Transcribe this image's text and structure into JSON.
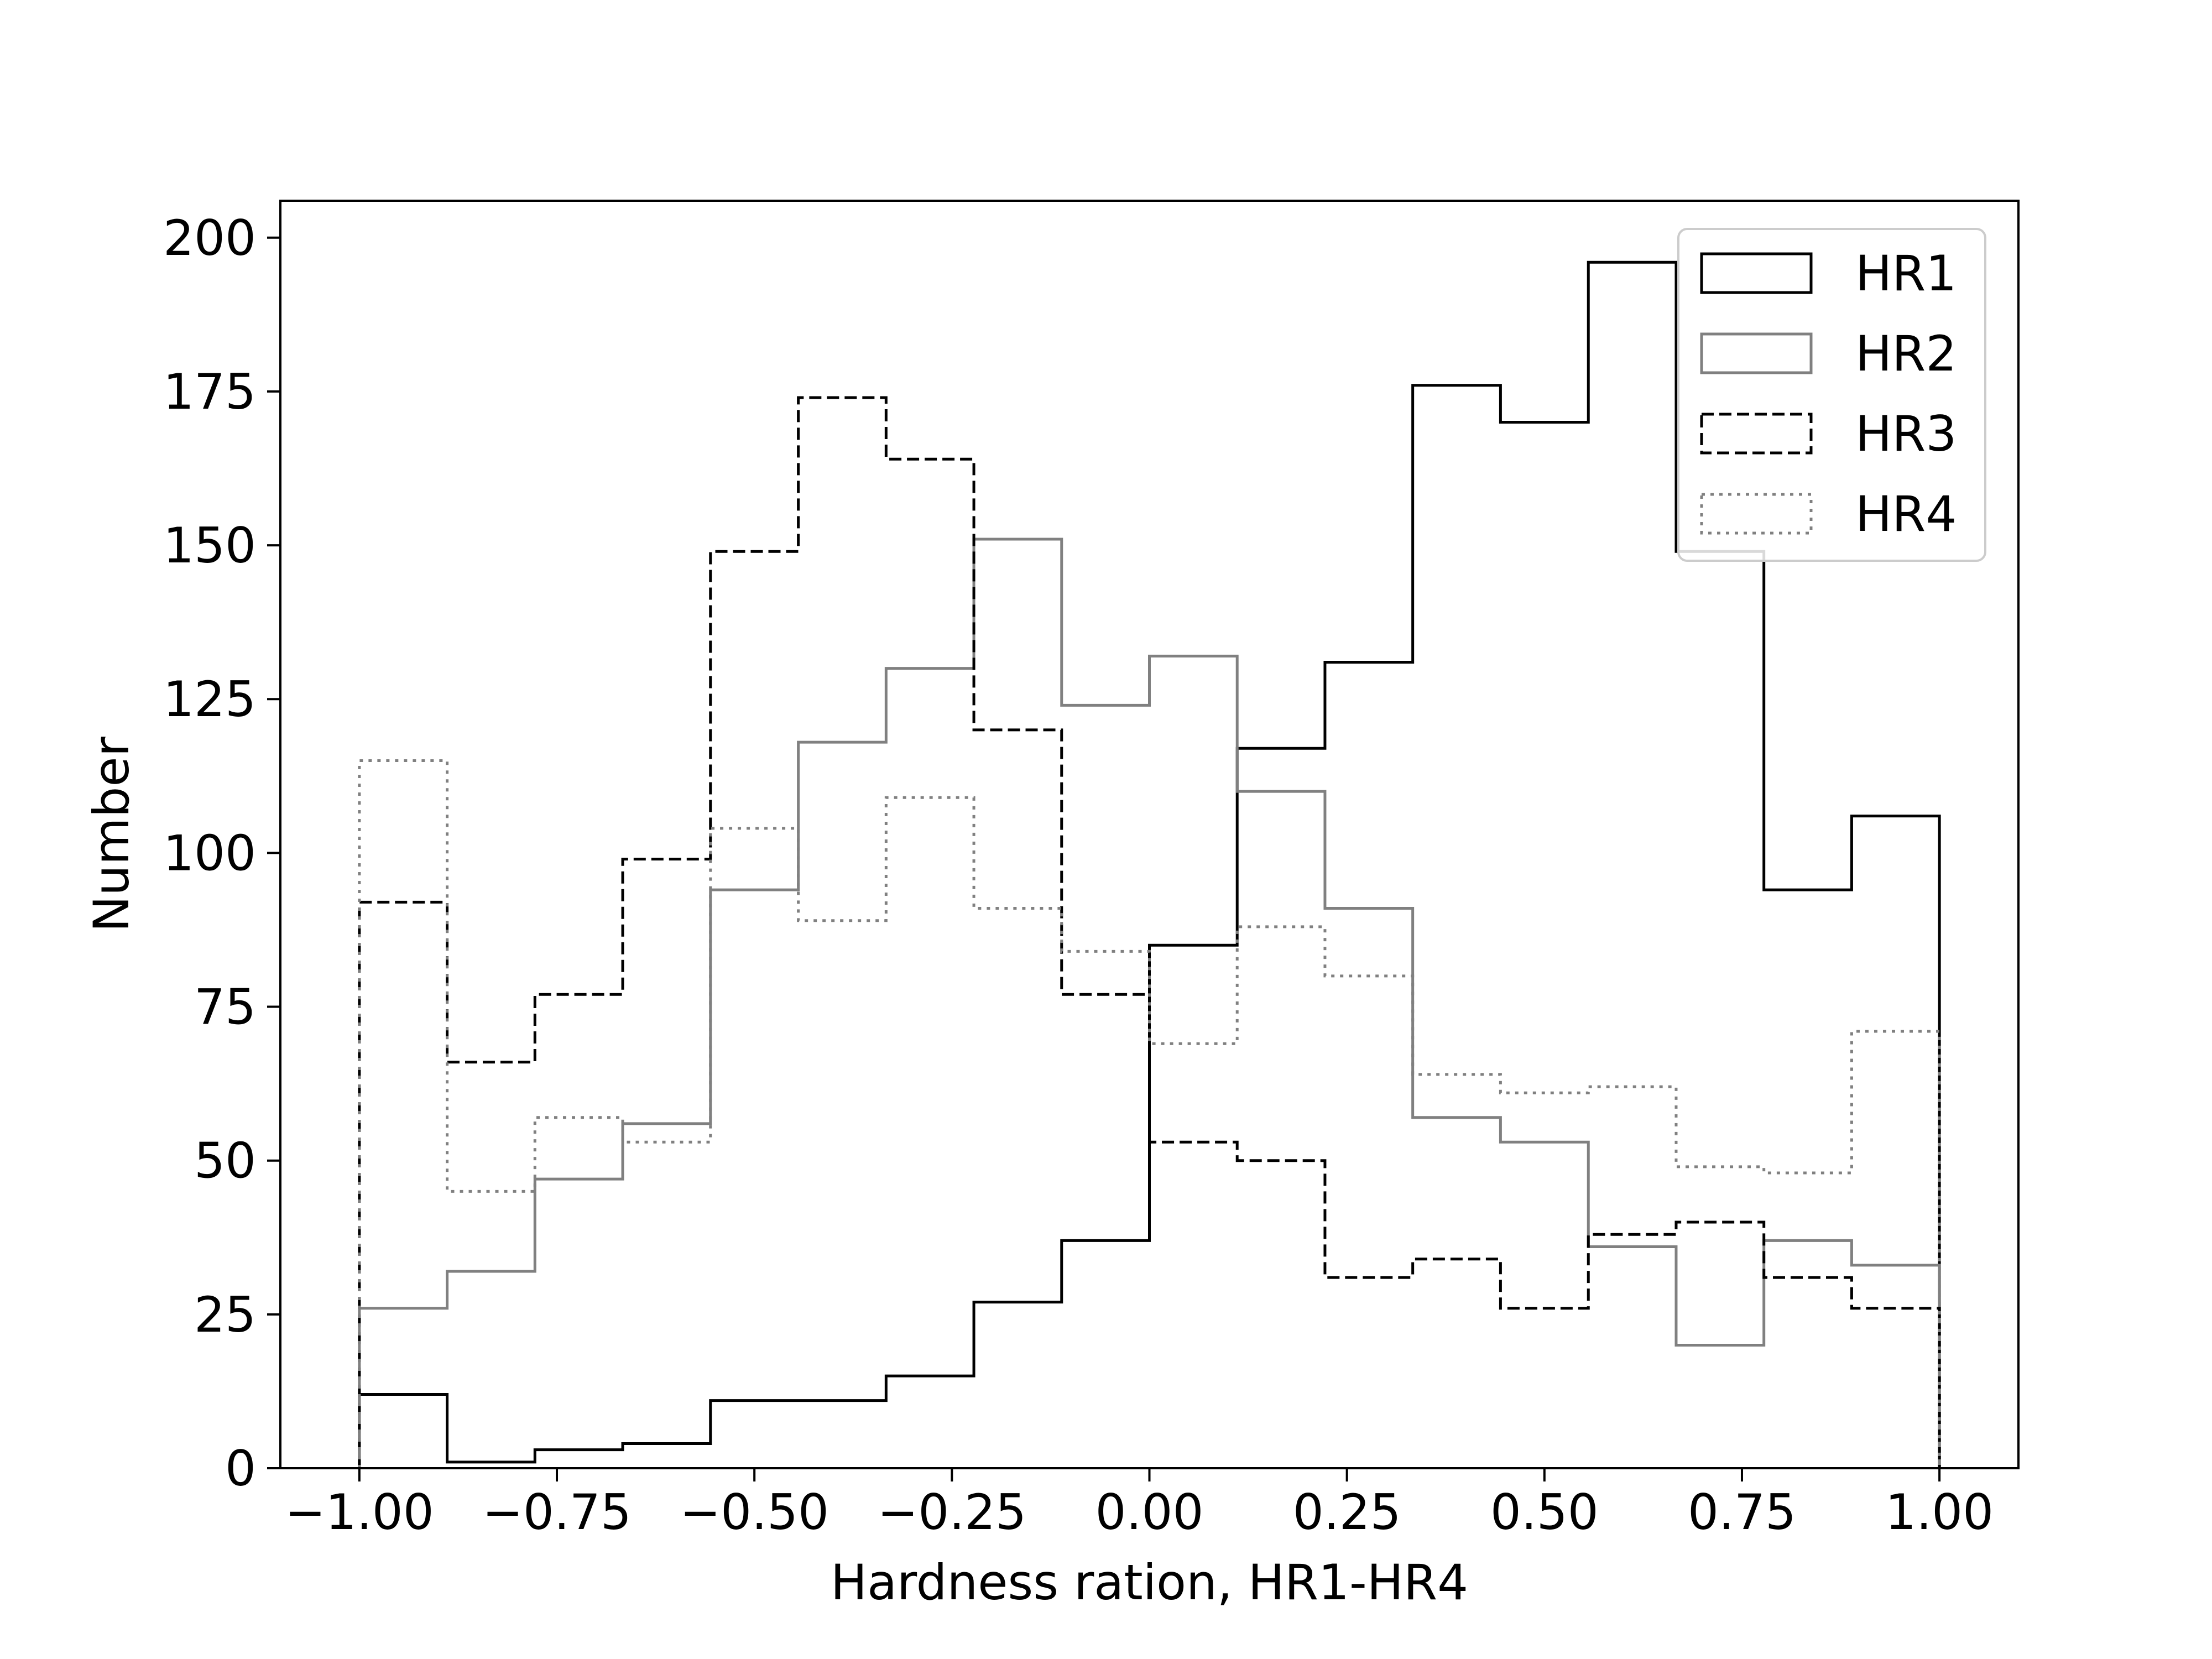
{
  "chart_data": {
    "type": "histogram",
    "title": "",
    "xlabel": "Hardness ration, HR1-HR4",
    "ylabel": "Number",
    "xlim": [
      -1.1,
      1.1
    ],
    "ylim": [
      0,
      206
    ],
    "grid": false,
    "legend_position": "top-right",
    "bin_edges": [
      -1.0,
      -0.8889,
      -0.7778,
      -0.6667,
      -0.5556,
      -0.4444,
      -0.3333,
      -0.2222,
      -0.1111,
      0.0,
      0.1111,
      0.2222,
      0.3333,
      0.4444,
      0.5556,
      0.6667,
      0.7778,
      0.8889,
      1.0
    ],
    "x_ticks": [
      {
        "value": -1.0,
        "label": "−1.00"
      },
      {
        "value": -0.75,
        "label": "−0.75"
      },
      {
        "value": -0.5,
        "label": "−0.50"
      },
      {
        "value": -0.25,
        "label": "−0.25"
      },
      {
        "value": 0.0,
        "label": "0.00"
      },
      {
        "value": 0.25,
        "label": "0.25"
      },
      {
        "value": 0.5,
        "label": "0.50"
      },
      {
        "value": 0.75,
        "label": "0.75"
      },
      {
        "value": 1.0,
        "label": "1.00"
      }
    ],
    "y_ticks": [
      {
        "value": 0,
        "label": "0"
      },
      {
        "value": 25,
        "label": "25"
      },
      {
        "value": 50,
        "label": "50"
      },
      {
        "value": 75,
        "label": "75"
      },
      {
        "value": 100,
        "label": "100"
      },
      {
        "value": 125,
        "label": "125"
      },
      {
        "value": 150,
        "label": "150"
      },
      {
        "value": 175,
        "label": "175"
      },
      {
        "value": 200,
        "label": "200"
      }
    ],
    "series": [
      {
        "name": "HR1",
        "color": "#000000",
        "dash": "solid",
        "values": [
          12,
          1,
          3,
          4,
          11,
          11,
          15,
          27,
          37,
          85,
          117,
          131,
          176,
          170,
          196,
          149,
          94,
          106
        ]
      },
      {
        "name": "HR2",
        "color": "#808080",
        "dash": "solid",
        "values": [
          26,
          32,
          47,
          56,
          94,
          118,
          130,
          151,
          124,
          132,
          110,
          91,
          57,
          53,
          36,
          20,
          37,
          33
        ]
      },
      {
        "name": "HR3",
        "color": "#000000",
        "dash": "dashed",
        "values": [
          92,
          66,
          77,
          99,
          149,
          174,
          164,
          120,
          77,
          53,
          50,
          31,
          34,
          26,
          38,
          40,
          31,
          26
        ]
      },
      {
        "name": "HR4",
        "color": "#808080",
        "dash": "dotted",
        "values": [
          115,
          45,
          57,
          53,
          104,
          89,
          109,
          91,
          84,
          69,
          88,
          80,
          64,
          61,
          62,
          49,
          48,
          71
        ]
      }
    ]
  }
}
